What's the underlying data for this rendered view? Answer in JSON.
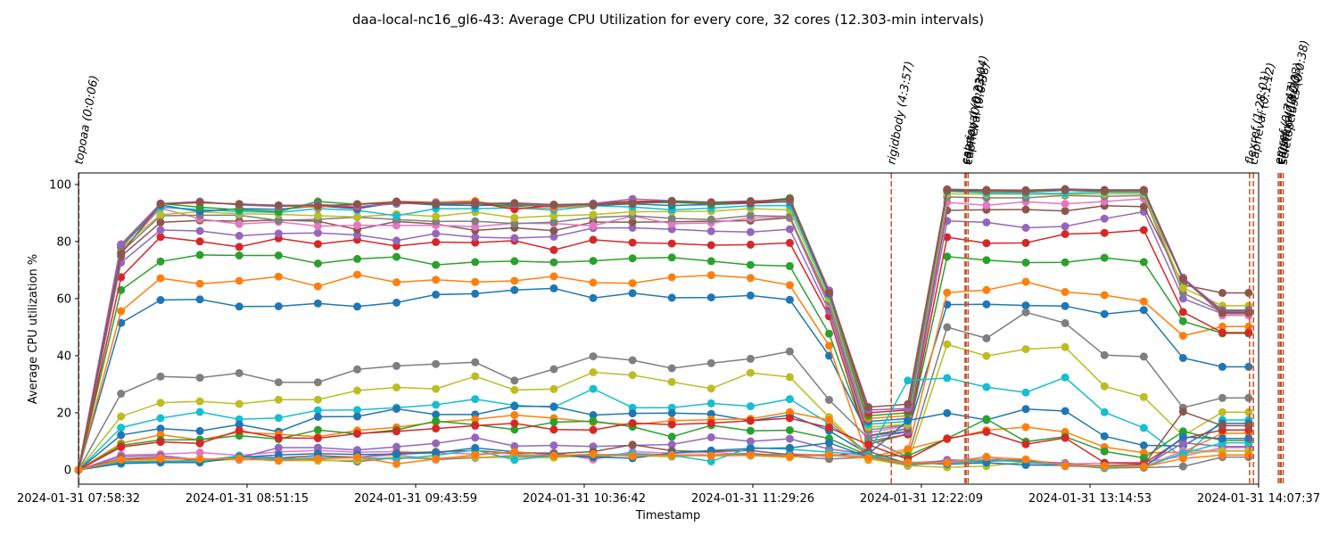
{
  "chart_data": {
    "type": "line",
    "title": "daa-local-nc16_gl6-43: Average CPU Utilization for every core, 32 cores (12.303-min intervals)",
    "xlabel": "Timestamp",
    "ylabel": "Average CPU utilization %",
    "ylim": [
      -5,
      104
    ],
    "yticks": [
      0,
      20,
      40,
      60,
      80,
      100
    ],
    "x_tick_labels": [
      "2024-01-31 07:58:32",
      "2024-01-31 08:51:15",
      "2024-01-31 09:43:59",
      "2024-01-31 10:36:42",
      "2024-01-31 11:29:26",
      "2024-01-31 12:22:09",
      "2024-01-31 13:14:53",
      "2024-01-31 14:07:37"
    ],
    "x_range": [
      "2024-01-31 07:58:32",
      "2024-01-31 14:07:37"
    ],
    "markers": true,
    "grid": false,
    "legend": "none",
    "x": [
      "07:58:32",
      "08:11:51",
      "08:24:12",
      "08:36:30",
      "08:48:48",
      "09:01:06",
      "09:13:24",
      "09:25:42",
      "09:38:00",
      "09:50:18",
      "10:02:36",
      "10:14:54",
      "10:27:12",
      "10:39:30",
      "10:51:48",
      "11:04:06",
      "11:16:24",
      "11:28:42",
      "11:41:00",
      "11:53:18",
      "12:05:36",
      "12:17:54",
      "12:30:12",
      "12:42:30",
      "12:54:48",
      "13:07:06",
      "13:19:24",
      "13:31:42",
      "13:44:00",
      "13:56:18",
      "14:04:30"
    ],
    "series": [
      {
        "color": "#1f77b4",
        "values": [
          0,
          51.5,
          59.5,
          59.7,
          57.2,
          57.3,
          58.3,
          57.2,
          58.6,
          61.4,
          61.7,
          63,
          63.6,
          60.2,
          61.9,
          60.3,
          60.4,
          61.1,
          59.6,
          40,
          12,
          13.5,
          57.9,
          58,
          57.6,
          57.4,
          54.6,
          56,
          39.2,
          36.1,
          36.1
        ]
      },
      {
        "color": "#ff7f0e",
        "values": [
          0,
          55.6,
          67.1,
          65.2,
          66.2,
          67.7,
          64.3,
          68.4,
          65.7,
          66.6,
          65.8,
          66.2,
          67.8,
          65.6,
          65.4,
          67.5,
          68.2,
          67.2,
          64.7,
          43.5,
          3.5,
          6.6,
          62.1,
          63,
          65.9,
          62.3,
          61.2,
          59,
          47,
          50.2,
          50.2
        ]
      },
      {
        "color": "#2ca02c",
        "values": [
          0,
          63,
          73,
          75.3,
          75.1,
          75.1,
          72.3,
          73.9,
          74.6,
          71.8,
          72.8,
          73.1,
          72.7,
          73.2,
          74.1,
          74.4,
          73.1,
          71.8,
          71.4,
          47.7,
          10,
          12.4,
          74.7,
          73.5,
          72.6,
          72.7,
          74.3,
          72.8,
          52.1,
          47.8,
          47.8
        ]
      },
      {
        "color": "#d62728",
        "values": [
          0,
          67.5,
          81.6,
          80,
          78.1,
          81.1,
          79.1,
          80.6,
          78.4,
          79.8,
          79.6,
          80.3,
          77,
          80.6,
          79.6,
          79.3,
          78.7,
          78.9,
          79.5,
          53.8,
          9,
          12.6,
          81.5,
          79.4,
          79.5,
          82.6,
          83,
          84,
          55.3,
          48.1,
          48.1
        ]
      },
      {
        "color": "#9467bd",
        "values": [
          0,
          72.6,
          84,
          83.7,
          82,
          82.8,
          83,
          82.3,
          80.3,
          82.8,
          81.5,
          81.2,
          81.7,
          84.7,
          84.8,
          84.3,
          83.6,
          83.3,
          84.3,
          55.7,
          11,
          13.3,
          87.2,
          86.7,
          84.8,
          85.3,
          88,
          90.4,
          60,
          54.7,
          54.7
        ]
      },
      {
        "color": "#8c564b",
        "values": [
          0,
          74.8,
          86.7,
          87.4,
          87.1,
          87.5,
          87.1,
          84.2,
          87,
          86.1,
          83.9,
          84.8,
          83.8,
          86.8,
          86.8,
          86.9,
          87.1,
          87.3,
          88.3,
          57.5,
          12,
          14.5,
          90.9,
          91.1,
          91.2,
          90.7,
          92.5,
          92.2,
          64.8,
          62,
          62
        ]
      },
      {
        "color": "#e377c2",
        "values": [
          0,
          76.5,
          91.7,
          87.9,
          86.1,
          86.9,
          85.4,
          85.7,
          85.6,
          85.7,
          85.2,
          86.4,
          86.3,
          85.5,
          88.9,
          86.2,
          86.5,
          88.2,
          88.6,
          58.2,
          13,
          15.5,
          93.7,
          92.7,
          93.9,
          93.2,
          94,
          95,
          67.4,
          54.1,
          54.1
        ]
      },
      {
        "color": "#7f7f7f",
        "values": [
          0,
          76.2,
          89,
          89.2,
          89.2,
          87.4,
          87.8,
          88.5,
          87.7,
          87,
          87.1,
          86.3,
          86.8,
          88.4,
          89,
          88.1,
          87.7,
          89.1,
          88.8,
          59,
          14,
          15.8,
          95.6,
          95.3,
          95.3,
          96.1,
          95.8,
          96.1,
          62,
          55.2,
          55.2
        ]
      },
      {
        "color": "#bcbd22",
        "values": [
          0,
          77.6,
          89.4,
          90.4,
          89.7,
          89.5,
          89,
          88.6,
          89.6,
          88.8,
          90.3,
          88.3,
          89,
          89.4,
          90.4,
          90.5,
          90.6,
          91.5,
          91.1,
          60,
          15,
          16,
          96.7,
          96.6,
          96.6,
          96.5,
          96.7,
          96.7,
          63.7,
          57.5,
          57.5
        ]
      },
      {
        "color": "#17becf",
        "values": [
          0,
          78,
          92,
          91.2,
          90.5,
          90.2,
          91.5,
          90.9,
          89,
          91.5,
          91.5,
          91.8,
          91,
          92.5,
          92.1,
          91.1,
          91.7,
          92.5,
          92.6,
          61.2,
          16,
          17,
          97.6,
          97,
          96.8,
          96.9,
          97.3,
          97.3,
          66.7,
          56,
          56
        ]
      },
      {
        "color": "#1f77b4",
        "values": [
          0,
          78.2,
          92.8,
          90.5,
          91.5,
          91.3,
          92.4,
          91.5,
          93.6,
          92.8,
          92.6,
          92.8,
          92.3,
          92.6,
          93.2,
          92.6,
          92.9,
          93.4,
          93.9,
          61.8,
          17,
          18,
          97.8,
          97.5,
          97.3,
          97.9,
          97.5,
          97.5,
          66.9,
          55.4,
          55.4
        ]
      },
      {
        "color": "#ff7f0e",
        "values": [
          0,
          78.5,
          93.1,
          93.5,
          93.2,
          92.4,
          92,
          93.1,
          94,
          93.8,
          94.2,
          91.8,
          91.8,
          92.8,
          93.7,
          93.7,
          93.3,
          93.7,
          94.4,
          62.2,
          18,
          19,
          98,
          97.7,
          97.5,
          98.1,
          97.8,
          97.8,
          67,
          55,
          55
        ]
      },
      {
        "color": "#2ca02c",
        "values": [
          0,
          78.7,
          93.3,
          92,
          91.1,
          90.5,
          94,
          93,
          93.6,
          93.1,
          93.3,
          92.3,
          92.9,
          93.1,
          93.5,
          93.7,
          93.1,
          93.8,
          95.2,
          62.5,
          19,
          20,
          97.9,
          97.8,
          97.6,
          98.2,
          97.9,
          98,
          67.1,
          55.2,
          55.2
        ]
      },
      {
        "color": "#d62728",
        "values": [
          0,
          78.9,
          93.1,
          93.8,
          93,
          92.5,
          92.8,
          91.8,
          94,
          93.5,
          93.7,
          91.3,
          92.8,
          93.3,
          94.1,
          94.1,
          93.8,
          93.5,
          94.7,
          62.7,
          20,
          21,
          98.1,
          97.9,
          97.8,
          98.3,
          98,
          98,
          67.2,
          55.8,
          55.8
        ]
      },
      {
        "color": "#9467bd",
        "values": [
          0,
          79,
          93.3,
          94,
          92.8,
          92.3,
          93,
          92.2,
          93.2,
          93.6,
          93.4,
          93.1,
          92.5,
          93.3,
          94.9,
          94.3,
          93.8,
          94.2,
          94.5,
          62.9,
          21,
          21.5,
          98.3,
          98.1,
          98,
          98.4,
          98.1,
          98.1,
          67.3,
          55.6,
          55.6
        ]
      },
      {
        "color": "#8c564b",
        "values": [
          0,
          75.6,
          93.2,
          93.7,
          93.1,
          92.7,
          92.5,
          93.1,
          93.8,
          93.2,
          93.3,
          93.5,
          92.9,
          92.9,
          93.3,
          94.1,
          93.6,
          94,
          94.8,
          62,
          22,
          23,
          98.2,
          98,
          97.9,
          98.2,
          98,
          98,
          66.8,
          55,
          55
        ]
      },
      {
        "color": "#e377c2",
        "values": [
          0,
          5.2,
          5.5,
          6.1,
          5.1,
          6.3,
          6.8,
          6.2,
          6.4,
          5.9,
          5.6,
          5.9,
          6.1,
          3.6,
          6.4,
          5.9,
          6.2,
          5.2,
          5.6,
          5.2,
          4.8,
          2.5,
          3.2,
          3,
          3.5,
          2,
          2.4,
          2.7,
          4.8,
          7.8,
          7.8
        ]
      },
      {
        "color": "#7f7f7f",
        "values": [
          0,
          26.7,
          32.7,
          32.3,
          33.9,
          30.7,
          30.7,
          35.2,
          36.4,
          37.1,
          37.7,
          31.3,
          35.3,
          39.8,
          38.4,
          35.6,
          37.4,
          38.9,
          41.5,
          24.5,
          11,
          4.5,
          50,
          46.1,
          55.2,
          51.4,
          40.2,
          39.7,
          21.8,
          25.2,
          25.2
        ]
      },
      {
        "color": "#bcbd22",
        "values": [
          0,
          18.7,
          23.5,
          24,
          23.1,
          24.6,
          24.6,
          27.8,
          28.9,
          28.4,
          32.8,
          28,
          28.3,
          34.2,
          33.2,
          30.8,
          28.5,
          34,
          32.5,
          18.5,
          5,
          2.3,
          44,
          39.9,
          42.3,
          43,
          29.3,
          25.5,
          12,
          20.2,
          20.2
        ]
      },
      {
        "color": "#17becf",
        "values": [
          0,
          14.8,
          18.1,
          20.3,
          17.7,
          18.2,
          20.9,
          21,
          21.8,
          22.8,
          24.8,
          22.6,
          22,
          28.4,
          21.8,
          21.8,
          23.3,
          22.3,
          24.8,
          16.2,
          6,
          31.3,
          32.2,
          29,
          27.1,
          32.4,
          20.2,
          14.7,
          4.2,
          17.5,
          17.5
        ]
      },
      {
        "color": "#1f77b4",
        "values": [
          0,
          12.2,
          14.5,
          13.6,
          15.9,
          13.4,
          18.6,
          18.7,
          21.4,
          19.4,
          19.4,
          22.3,
          22.2,
          19.2,
          19.8,
          19.9,
          19.6,
          17.2,
          19.2,
          13.7,
          5.5,
          17.3,
          19.9,
          17.5,
          21.3,
          20.6,
          11.8,
          8.6,
          8.4,
          16.3,
          16.3
        ]
      },
      {
        "color": "#ff7f0e",
        "values": [
          0,
          9.3,
          12.3,
          10.5,
          13.2,
          12.5,
          11.6,
          13.8,
          14.9,
          16.7,
          17.7,
          19.2,
          18.1,
          16.7,
          15.8,
          17.2,
          17.6,
          17.9,
          20.2,
          17.5,
          4.5,
          7.3,
          10.7,
          13.9,
          15,
          13.3,
          8,
          6,
          6.2,
          12.8,
          12.8
        ]
      },
      {
        "color": "#2ca02c",
        "values": [
          0,
          8.6,
          10.5,
          10.6,
          12,
          10.8,
          14,
          12.6,
          14,
          17.1,
          15.8,
          14.1,
          16.7,
          17.1,
          15.1,
          11.6,
          15.6,
          13.7,
          13.9,
          11,
          5,
          4.9,
          11,
          17.8,
          9.9,
          11.6,
          6.5,
          4.2,
          13.5,
          10.3,
          10.3
        ]
      },
      {
        "color": "#d62728",
        "values": [
          0,
          8,
          9.8,
          9.3,
          13.8,
          11.2,
          11.1,
          12.7,
          13.5,
          14.5,
          15.5,
          16.3,
          14.1,
          14,
          16.4,
          15.9,
          16.4,
          17.2,
          18.1,
          14.8,
          8.8,
          3.7,
          11,
          13.3,
          9,
          11.2,
          2.5,
          2.2,
          11,
          14,
          14
        ]
      },
      {
        "color": "#9467bd",
        "values": [
          0,
          4.7,
          5,
          3.6,
          4.2,
          7.8,
          7.8,
          7,
          8.1,
          9.3,
          11.3,
          8.3,
          8.6,
          8.2,
          8.6,
          8.9,
          11.4,
          10,
          10.9,
          7.3,
          5.5,
          1.4,
          3.5,
          3.2,
          3,
          2.4,
          1.2,
          1.2,
          9.5,
          8.2,
          8.2
        ]
      },
      {
        "color": "#8c564b",
        "values": [
          0,
          3.9,
          4.4,
          3.3,
          3.8,
          4.2,
          5,
          4.4,
          5.8,
          6.3,
          6.8,
          5.7,
          5.7,
          6.4,
          8.8,
          6.7,
          6.4,
          6.8,
          5.3,
          4.8,
          6.5,
          2.2,
          2.7,
          3.6,
          3.4,
          1.6,
          1.6,
          1.8,
          20.4,
          15.5,
          15.5
        ]
      },
      {
        "color": "#e377c2",
        "values": [
          0,
          3.1,
          4.2,
          3.9,
          3.5,
          3.8,
          3.9,
          4.3,
          5.3,
          3.6,
          4.2,
          4.5,
          4.9,
          4.6,
          5.3,
          5,
          5.4,
          5.2,
          4.6,
          5.1,
          4.3,
          2,
          2.7,
          4.6,
          2.3,
          2.1,
          1.3,
          1,
          6.7,
          6.7,
          6.7
        ]
      },
      {
        "color": "#7f7f7f",
        "values": [
          0,
          2.8,
          3,
          3.3,
          4.6,
          4.3,
          3.5,
          2.9,
          4.3,
          3.8,
          4.3,
          5,
          4.9,
          4.4,
          5.7,
          5.2,
          5.2,
          5.8,
          4.8,
          3.8,
          4.4,
          1.7,
          2.6,
          3,
          3.6,
          1.3,
          1.1,
          0.8,
          1.2,
          4.5,
          4.5
        ]
      },
      {
        "color": "#bcbd22",
        "values": [
          0,
          3.5,
          3.3,
          2.9,
          3.8,
          3.3,
          3.2,
          3.4,
          4.5,
          4.1,
          4.5,
          4.4,
          4.3,
          5.1,
          5.1,
          4.6,
          5.3,
          5,
          4.4,
          5.6,
          3.9,
          1.5,
          0.9,
          1.3,
          2.7,
          1.6,
          1.3,
          1,
          5.9,
          6.6,
          6.6
        ]
      },
      {
        "color": "#17becf",
        "values": [
          0,
          2.6,
          2.9,
          3.2,
          4.9,
          3.6,
          4.3,
          4.3,
          3.8,
          5.1,
          7,
          3.5,
          5,
          5.2,
          5.6,
          5.1,
          3,
          7.8,
          7.2,
          6.2,
          5.2,
          2.3,
          2.4,
          3.6,
          2.7,
          1.7,
          0.6,
          0.9,
          5.8,
          9.5,
          9.5
        ]
      },
      {
        "color": "#1f77b4",
        "values": [
          0,
          2.2,
          2.6,
          2.6,
          4.4,
          5.2,
          5.7,
          5.4,
          5.5,
          6,
          7.7,
          6.3,
          5.4,
          4.5,
          4.1,
          5.9,
          6.8,
          7.5,
          7.7,
          9.5,
          4.5,
          2.7,
          2,
          2.5,
          1.7,
          1.6,
          1.1,
          0.9,
          11.5,
          11,
          11
        ]
      },
      {
        "color": "#ff7f0e",
        "values": [
          0,
          3.6,
          3.9,
          3.8,
          4,
          3.2,
          3.9,
          4.4,
          2.1,
          3.8,
          5.2,
          6.3,
          5,
          5.5,
          4.8,
          5.2,
          4.9,
          5.1,
          4.7,
          5.4,
          4.3,
          2.6,
          2.4,
          4.5,
          3.7,
          1.5,
          1.1,
          1.1,
          4,
          5.2,
          5.2
        ]
      }
    ],
    "annotations": [
      {
        "x": "07:58:37",
        "label": "topoaa (0:0:06)"
      },
      {
        "x": "12:12:44",
        "label": "rigidbody (4:3:57)"
      },
      {
        "x": "12:35:48",
        "label": "caprieval (0:23:04)"
      },
      {
        "x": "12:36:08",
        "label": "seletop (0:0:03)"
      },
      {
        "x": "12:36:46",
        "label": "caprieval (0:0:38)"
      },
      {
        "x": "14:04:48",
        "label": "flexref (1:28:01)"
      },
      {
        "x": "14:06:00",
        "label": "caprieval (0:1:12)"
      },
      {
        "x": "14:13:47",
        "label": "emref (0:7:47)"
      },
      {
        "x": "14:14:20",
        "label": "caprieval (0:0:33)"
      },
      {
        "x": "14:14:40",
        "label": "clustfcc (0:0:20)"
      },
      {
        "x": "14:15:18",
        "label": "seletopclusts (0:0:38)"
      }
    ]
  }
}
